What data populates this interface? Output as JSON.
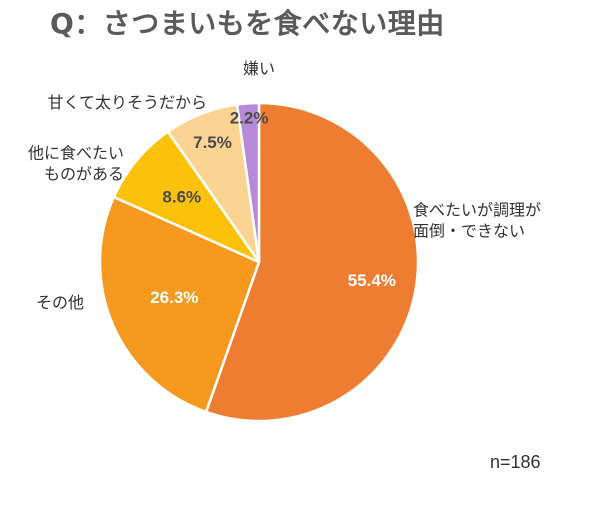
{
  "chart_data": {
    "type": "pie",
    "title": "Q：さつまいもを食べない理由",
    "note": "n=186",
    "start_angle_deg": 0,
    "direction": "clockwise",
    "slices": [
      {
        "label": "食べたいが調理が\n面倒・できない",
        "value": 55.4,
        "value_label": "55.4%",
        "color": "#ee7d31",
        "value_color": "#ffffff"
      },
      {
        "label": "その他",
        "value": 26.3,
        "value_label": "26.3%",
        "color": "#f59a1f",
        "value_color": "#ffffff"
      },
      {
        "label": "他に食べたい\nものがある",
        "value": 8.6,
        "value_label": "8.6%",
        "color": "#fcc20a",
        "value_color": "#4a4a4a"
      },
      {
        "label": "甘くて太りそうだから",
        "value": 7.5,
        "value_label": "7.5%",
        "color": "#fbd493",
        "value_color": "#4a4a4a"
      },
      {
        "label": "嫌い",
        "value": 2.2,
        "value_label": "2.2%",
        "color": "#b689d9",
        "value_color": "#4a4a4a"
      }
    ]
  }
}
